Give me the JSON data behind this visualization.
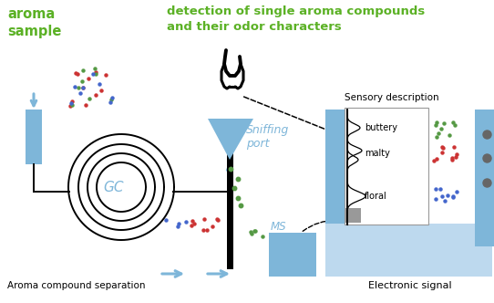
{
  "title_left": "aroma\nsample",
  "title_right": "detection of single aroma compounds\nand their odor characters",
  "label_gc": "GC",
  "label_sniffing": "Sniffing\nport",
  "label_ms": "MS",
  "label_separation": "Aroma compound separation",
  "label_electronic": "Electronic signal",
  "label_sensory": "Sensory description",
  "label_buttery": "buttery",
  "label_malty": "malty",
  "label_floral": "floral",
  "color_green_text": "#5BB125",
  "color_blue_fill": "#7EB6D9",
  "color_blue_light": "#BDD9EE",
  "color_dot_red": "#CC3333",
  "color_dot_green": "#559944",
  "color_dot_blue": "#4466CC",
  "color_gray": "#999999",
  "color_dark_gray": "#666666",
  "bg_color": "#FFFFFF"
}
